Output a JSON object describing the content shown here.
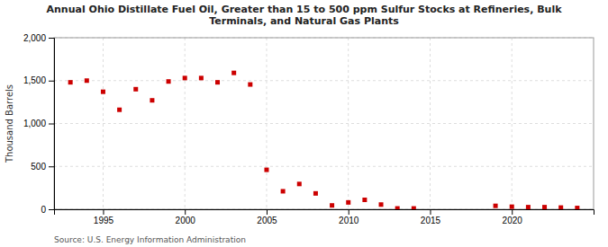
{
  "chart_data": {
    "type": "scatter",
    "title": "Annual Ohio Distillate Fuel Oil, Greater than 15 to 500 ppm Sulfur Stocks at Refineries, Bulk\nTerminals, and Natural Gas Plants",
    "ylabel": "Thousand Barrels",
    "source": "Source: U.S. Energy Information Administration",
    "color": "#cc0000",
    "marker": "square",
    "grid": true,
    "x": [
      1993,
      1994,
      1995,
      1996,
      1997,
      1998,
      1999,
      2000,
      2001,
      2002,
      2003,
      2004,
      2005,
      2006,
      2007,
      2008,
      2009,
      2010,
      2011,
      2012,
      2013,
      2014,
      2019,
      2020,
      2021,
      2022,
      2023,
      2024
    ],
    "values": [
      1480,
      1500,
      1370,
      1160,
      1400,
      1270,
      1490,
      1530,
      1530,
      1480,
      1590,
      1455,
      460,
      210,
      295,
      185,
      45,
      80,
      110,
      55,
      10,
      10,
      40,
      30,
      25,
      25,
      20,
      15
    ],
    "xlim": [
      1992,
      2025
    ],
    "ylim": [
      0,
      2000
    ],
    "xticks": [
      1995,
      2000,
      2005,
      2010,
      2015,
      2020
    ],
    "yticks": [
      0,
      500,
      {
        "value": 1000,
        "label": "1,000"
      },
      {
        "value": 1500,
        "label": "1,500"
      },
      {
        "value": 2000,
        "label": "2,000"
      }
    ]
  }
}
